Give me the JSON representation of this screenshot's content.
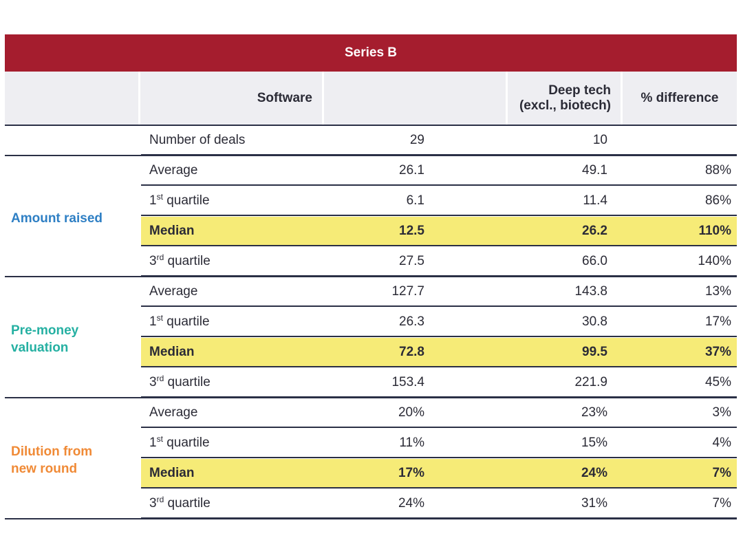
{
  "chart_data": {
    "type": "table",
    "title": "Series B",
    "columns": [
      "",
      "Software",
      "Deep tech\n(excl., biotech)",
      "% difference"
    ],
    "deals": {
      "label": "Number of deals",
      "software": "29",
      "deeptech": "10",
      "diff": ""
    },
    "groups": [
      {
        "name": "Amount raised",
        "color": "#2e7fc4",
        "rows": [
          {
            "label": "Average",
            "sup": "",
            "suffix": "",
            "software": "26.1",
            "deeptech": "49.1",
            "diff": "88%",
            "highlight": false
          },
          {
            "label": "1",
            "sup": "st",
            "suffix": " quartile",
            "software": "6.1",
            "deeptech": "11.4",
            "diff": "86%",
            "highlight": false
          },
          {
            "label": "Median",
            "sup": "",
            "suffix": "",
            "software": "12.5",
            "deeptech": "26.2",
            "diff": "110%",
            "highlight": true
          },
          {
            "label": "3",
            "sup": "rd",
            "suffix": " quartile",
            "software": "27.5",
            "deeptech": "66.0",
            "diff": "140%",
            "highlight": false
          }
        ]
      },
      {
        "name": "Pre-money\nvaluation",
        "color": "#25b0a2",
        "rows": [
          {
            "label": "Average",
            "sup": "",
            "suffix": "",
            "software": "127.7",
            "deeptech": "143.8",
            "diff": "13%",
            "highlight": false
          },
          {
            "label": "1",
            "sup": "st",
            "suffix": " quartile",
            "software": "26.3",
            "deeptech": "30.8",
            "diff": "17%",
            "highlight": false
          },
          {
            "label": "Median",
            "sup": "",
            "suffix": "",
            "software": "72.8",
            "deeptech": "99.5",
            "diff": "37%",
            "highlight": true
          },
          {
            "label": "3",
            "sup": "rd",
            "suffix": " quartile",
            "software": "153.4",
            "deeptech": "221.9",
            "diff": "45%",
            "highlight": false
          }
        ]
      },
      {
        "name": "Dilution from\nnew round",
        "color": "#f08a36",
        "rows": [
          {
            "label": "Average",
            "sup": "",
            "suffix": "",
            "software": "20%",
            "deeptech": "23%",
            "diff": "3%",
            "highlight": false
          },
          {
            "label": "1",
            "sup": "st",
            "suffix": " quartile",
            "software": "11%",
            "deeptech": "15%",
            "diff": "4%",
            "highlight": false
          },
          {
            "label": "Median",
            "sup": "",
            "suffix": "",
            "software": "17%",
            "deeptech": "24%",
            "diff": "7%",
            "highlight": true
          },
          {
            "label": "3",
            "sup": "rd",
            "suffix": " quartile",
            "software": "24%",
            "deeptech": "31%",
            "diff": "7%",
            "highlight": false
          }
        ]
      }
    ],
    "colors": {
      "title_bar": "#a51d2e",
      "header_bg": "#eeeef2",
      "highlight": "#f6eb77",
      "rule": "#2a2f45"
    }
  }
}
